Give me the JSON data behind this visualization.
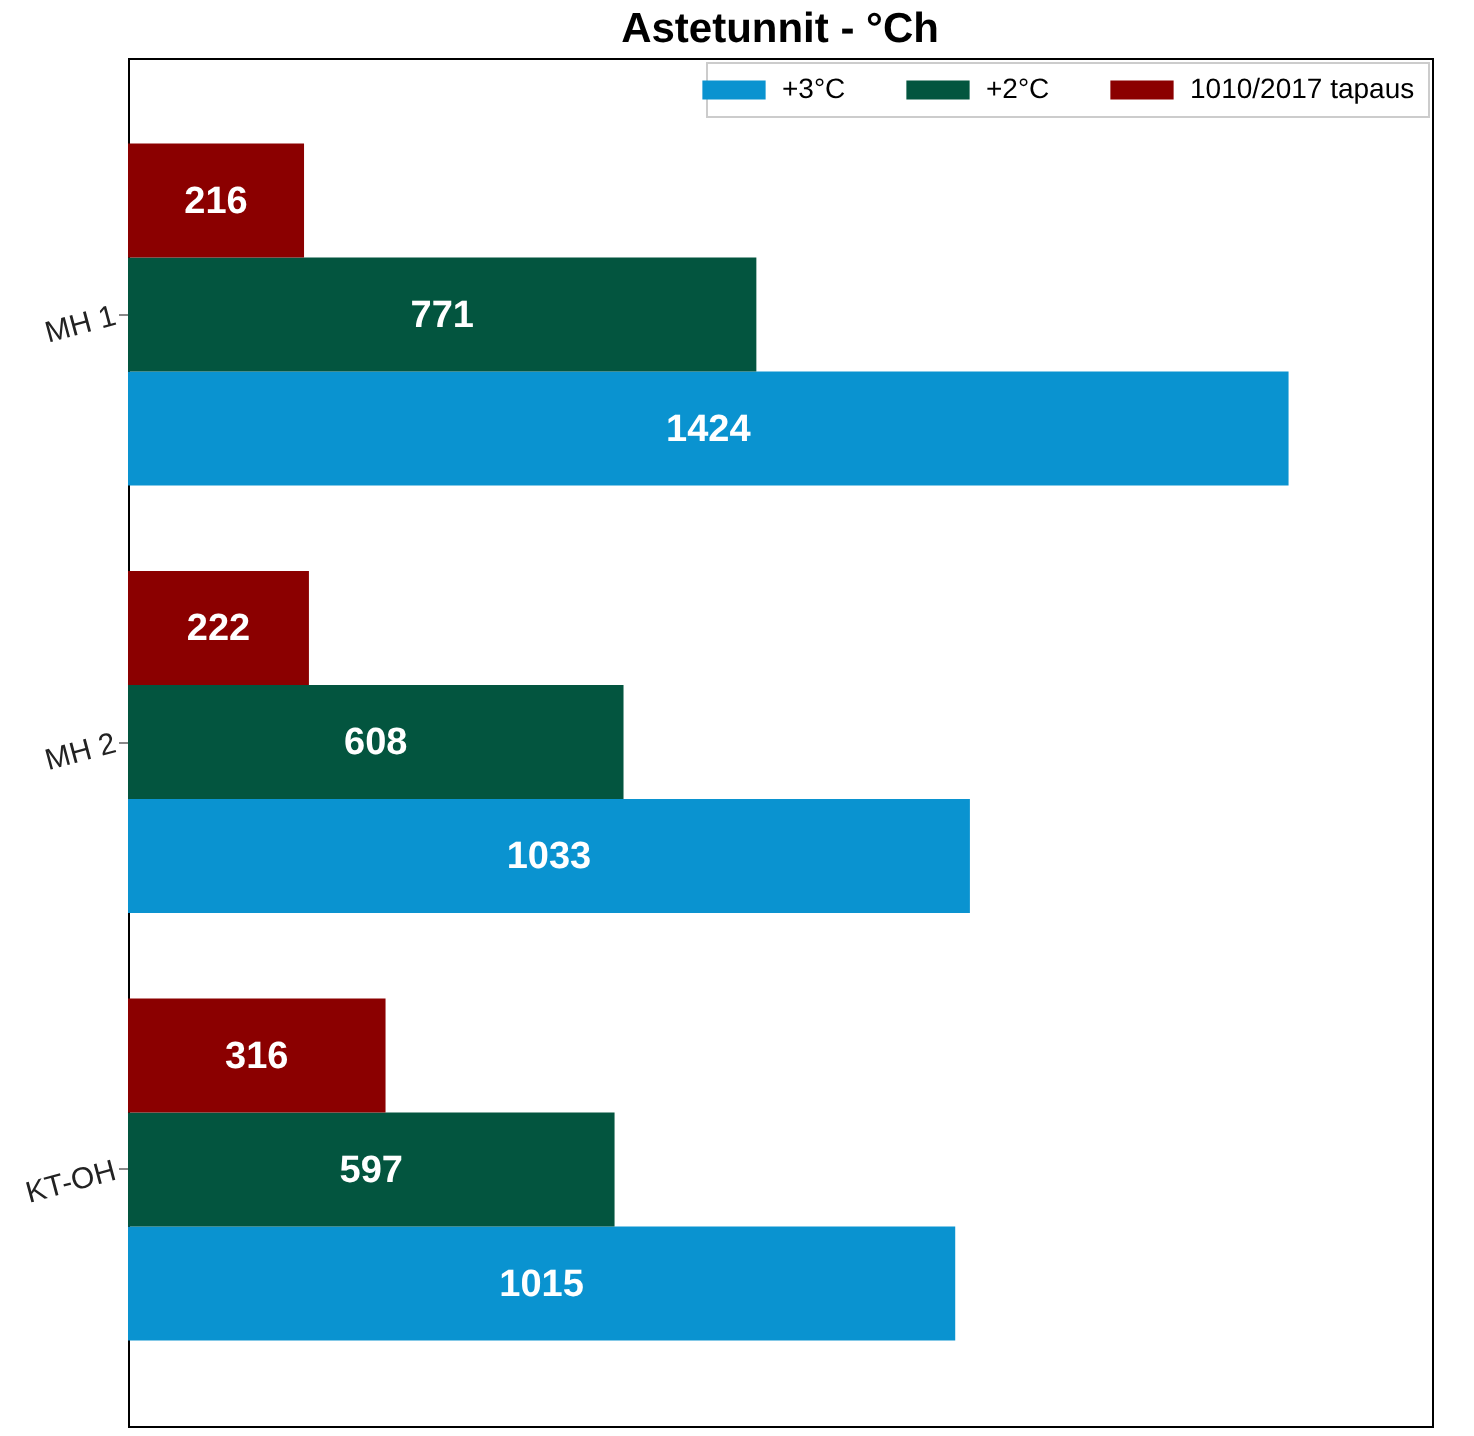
{
  "chart_data": {
    "type": "bar",
    "orientation": "horizontal",
    "title": "Astetunnit - °Ch",
    "categories": [
      "MH 1",
      "MH 2",
      "KT-OH"
    ],
    "series": [
      {
        "name": "+3°C",
        "color": "#0a93d0",
        "values": [
          1424,
          1033,
          1015
        ]
      },
      {
        "name": "+2°C",
        "color": "#03553f",
        "values": [
          771,
          608,
          597
        ]
      },
      {
        "name": "1010/2017 tapaus",
        "color": "#8b0000",
        "values": [
          216,
          222,
          316
        ]
      }
    ],
    "data_labels": true,
    "legend": "top right",
    "grid": false,
    "tick_labels": "y"
  }
}
